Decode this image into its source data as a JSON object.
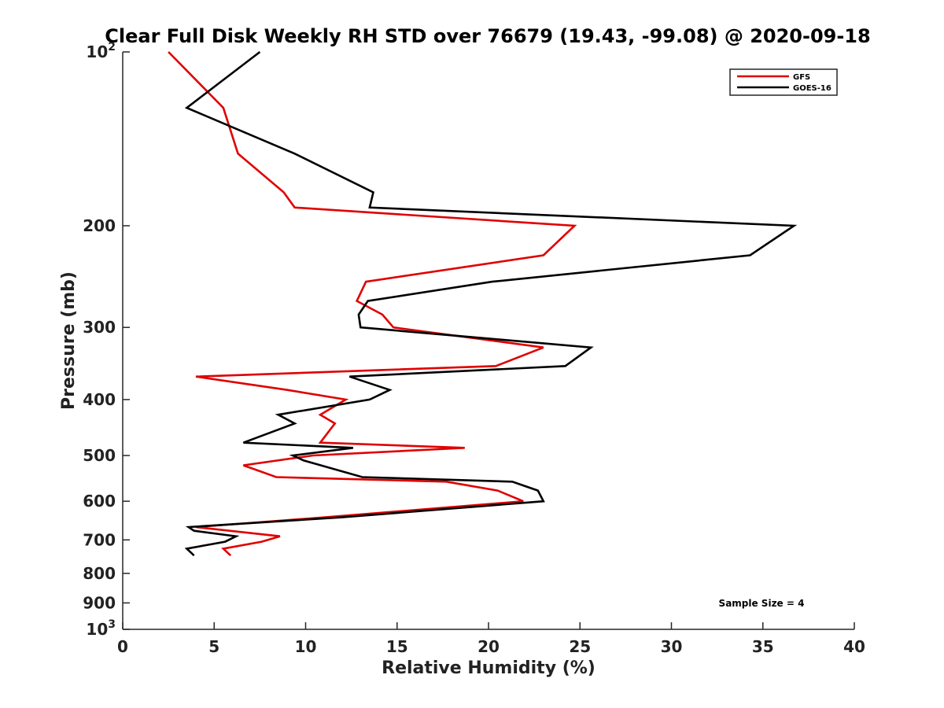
{
  "chart_data": {
    "type": "line",
    "title": "Clear Full Disk Weekly RH STD over 76679 (19.43, -99.08) @ 2020-09-18",
    "xlabel": "Relative Humidity (%)",
    "ylabel": "Pressure (mb)",
    "xlim": [
      0,
      40
    ],
    "ylim": [
      100,
      1000
    ],
    "y_scale": "log",
    "y_reversed": true,
    "x_ticks": [
      "0",
      "5",
      "10",
      "15",
      "20",
      "25",
      "30",
      "35",
      "40"
    ],
    "y_ticks": [
      {
        "value": 100,
        "label": "10",
        "exp": "2"
      },
      {
        "value": 200,
        "label": "200"
      },
      {
        "value": 300,
        "label": "300"
      },
      {
        "value": 400,
        "label": "400"
      },
      {
        "value": 500,
        "label": "500"
      },
      {
        "value": 600,
        "label": "600"
      },
      {
        "value": 700,
        "label": "700"
      },
      {
        "value": 800,
        "label": "800"
      },
      {
        "value": 900,
        "label": "900"
      },
      {
        "value": 1000,
        "label": "10",
        "exp": "3"
      }
    ],
    "legend_position": "top-right",
    "grid": false,
    "annotation": "Sample Size = 4",
    "series": [
      {
        "name": "GFS",
        "color": "#e00000",
        "points": [
          [
            2.5,
            100
          ],
          [
            5.5,
            125
          ],
          [
            6.3,
            150
          ],
          [
            8.8,
            175
          ],
          [
            9.4,
            186
          ],
          [
            24.7,
            200
          ],
          [
            23.0,
            225
          ],
          [
            13.3,
            250
          ],
          [
            12.8,
            270
          ],
          [
            14.2,
            285
          ],
          [
            14.8,
            300
          ],
          [
            23.0,
            325
          ],
          [
            20.4,
            350
          ],
          [
            4.0,
            365
          ],
          [
            9.0,
            385
          ],
          [
            12.2,
            400
          ],
          [
            10.8,
            425
          ],
          [
            11.6,
            440
          ],
          [
            10.8,
            475
          ],
          [
            18.7,
            485
          ],
          [
            10.4,
            500
          ],
          [
            6.6,
            520
          ],
          [
            8.4,
            545
          ],
          [
            17.7,
            555
          ],
          [
            20.5,
            575
          ],
          [
            21.9,
            600
          ],
          [
            11.0,
            640
          ],
          [
            4.0,
            665
          ],
          [
            8.6,
            690
          ],
          [
            7.6,
            705
          ],
          [
            5.5,
            725
          ],
          [
            5.9,
            745
          ]
        ]
      },
      {
        "name": "GOES-16",
        "color": "#000000",
        "points": [
          [
            7.5,
            100
          ],
          [
            3.5,
            125
          ],
          [
            9.4,
            150
          ],
          [
            13.7,
            175
          ],
          [
            13.5,
            186
          ],
          [
            36.7,
            200
          ],
          [
            34.3,
            225
          ],
          [
            20.2,
            250
          ],
          [
            13.4,
            270
          ],
          [
            12.9,
            285
          ],
          [
            13.0,
            300
          ],
          [
            25.6,
            325
          ],
          [
            24.2,
            350
          ],
          [
            12.4,
            365
          ],
          [
            14.6,
            385
          ],
          [
            13.5,
            400
          ],
          [
            8.5,
            425
          ],
          [
            9.4,
            440
          ],
          [
            6.6,
            475
          ],
          [
            12.6,
            485
          ],
          [
            9.3,
            500
          ],
          [
            9.9,
            510
          ],
          [
            13.1,
            545
          ],
          [
            21.3,
            555
          ],
          [
            22.7,
            575
          ],
          [
            23.0,
            600
          ],
          [
            11.9,
            640
          ],
          [
            3.6,
            665
          ],
          [
            3.9,
            675
          ],
          [
            6.2,
            690
          ],
          [
            5.6,
            705
          ],
          [
            3.5,
            725
          ],
          [
            3.9,
            745
          ]
        ]
      }
    ]
  }
}
